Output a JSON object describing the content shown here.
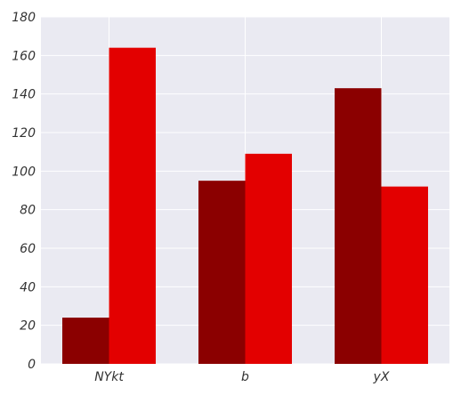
{
  "chart_data": {
    "type": "bar",
    "categories": [
      "NYkt",
      "b",
      "yX"
    ],
    "series": [
      {
        "values": [
          24,
          95,
          143
        ],
        "color": "#8b0000"
      },
      {
        "values": [
          164,
          109,
          92
        ],
        "color": "#e30000"
      }
    ],
    "ylim": [
      0,
      180
    ],
    "yticks": [
      0,
      20,
      40,
      60,
      80,
      100,
      120,
      140,
      160,
      180
    ],
    "grid": true,
    "legend": "none",
    "title": "",
    "xlabel": "",
    "ylabel": ""
  },
  "colors": {
    "plot_background": "#eaeaf2",
    "grid": "#ffffff"
  }
}
